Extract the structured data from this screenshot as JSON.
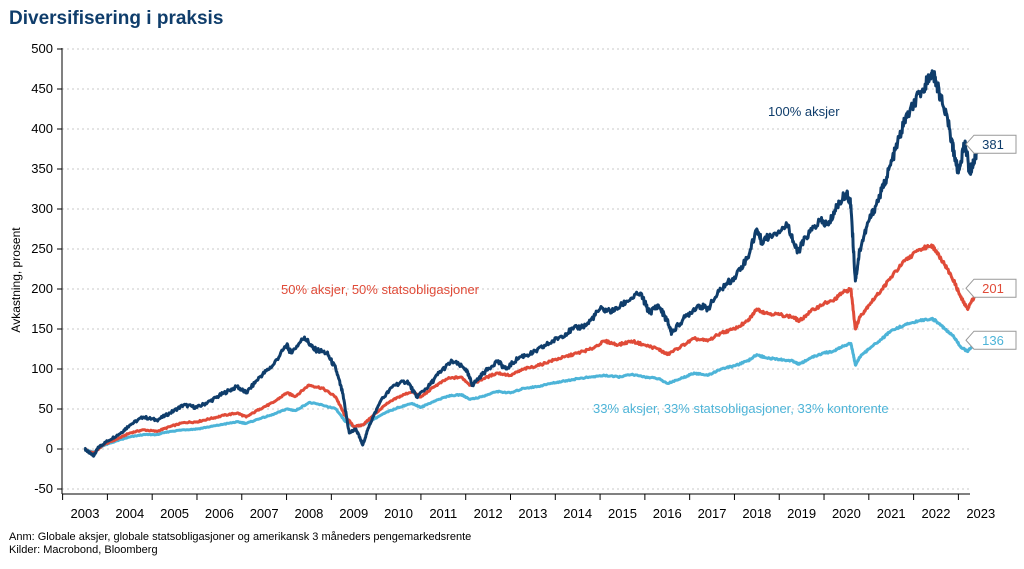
{
  "page": {
    "title": "Diversifisering i praksis",
    "notes": [
      "Anm: Globale aksjer, globale statsobligasjoner og amerikansk 3 måneders pengemarkedsrente",
      "Kilder: Macrobond, Bloomberg"
    ]
  },
  "chart_data": {
    "type": "line",
    "title": "Diversifisering i praksis",
    "ylabel": "Avkastning, prosent",
    "xlabel": "",
    "ylim": [
      -50,
      500
    ],
    "xlim": [
      2002.9,
      2023.4
    ],
    "grid": true,
    "y_ticks": [
      -50,
      0,
      50,
      100,
      150,
      200,
      250,
      300,
      350,
      400,
      450,
      500
    ],
    "x_ticks": [
      2003,
      2004,
      2005,
      2006,
      2007,
      2008,
      2009,
      2010,
      2011,
      2012,
      2013,
      2014,
      2015,
      2016,
      2017,
      2018,
      2019,
      2020,
      2021,
      2022,
      2023
    ],
    "x_tick_labels": [
      "2003",
      "2004",
      "2005",
      "2006",
      "2007",
      "2008",
      "2009",
      "2010",
      "2011",
      "2012",
      "2013",
      "2014",
      "2015",
      "2016",
      "2017",
      "2018",
      "2019",
      "2020",
      "2021",
      "2022",
      "2023"
    ],
    "series": [
      {
        "name": "100% aksjer",
        "color": "#0f3d6b",
        "end_label": "381",
        "points": [
          [
            2003.0,
            0
          ],
          [
            2003.1,
            -5
          ],
          [
            2003.2,
            -8
          ],
          [
            2003.3,
            2
          ],
          [
            2003.5,
            10
          ],
          [
            2003.8,
            20
          ],
          [
            2004.0,
            30
          ],
          [
            2004.3,
            40
          ],
          [
            2004.6,
            36
          ],
          [
            2004.9,
            45
          ],
          [
            2005.2,
            55
          ],
          [
            2005.5,
            52
          ],
          [
            2005.8,
            60
          ],
          [
            2006.1,
            70
          ],
          [
            2006.4,
            78
          ],
          [
            2006.6,
            70
          ],
          [
            2006.9,
            90
          ],
          [
            2007.2,
            105
          ],
          [
            2007.5,
            130
          ],
          [
            2007.6,
            120
          ],
          [
            2007.9,
            140
          ],
          [
            2008.1,
            125
          ],
          [
            2008.4,
            120
          ],
          [
            2008.6,
            100
          ],
          [
            2008.75,
            70
          ],
          [
            2008.9,
            20
          ],
          [
            2009.05,
            25
          ],
          [
            2009.2,
            5
          ],
          [
            2009.35,
            30
          ],
          [
            2009.6,
            60
          ],
          [
            2009.9,
            80
          ],
          [
            2010.2,
            85
          ],
          [
            2010.4,
            65
          ],
          [
            2010.7,
            80
          ],
          [
            2010.9,
            95
          ],
          [
            2011.2,
            110
          ],
          [
            2011.5,
            100
          ],
          [
            2011.65,
            80
          ],
          [
            2011.9,
            95
          ],
          [
            2012.2,
            110
          ],
          [
            2012.4,
            100
          ],
          [
            2012.7,
            115
          ],
          [
            2013.0,
            120
          ],
          [
            2013.3,
            130
          ],
          [
            2013.6,
            140
          ],
          [
            2013.9,
            150
          ],
          [
            2014.2,
            155
          ],
          [
            2014.5,
            175
          ],
          [
            2014.8,
            172
          ],
          [
            2015.1,
            185
          ],
          [
            2015.4,
            195
          ],
          [
            2015.6,
            170
          ],
          [
            2015.8,
            180
          ],
          [
            2016.0,
            160
          ],
          [
            2016.1,
            145
          ],
          [
            2016.4,
            165
          ],
          [
            2016.7,
            180
          ],
          [
            2016.9,
            175
          ],
          [
            2017.2,
            200
          ],
          [
            2017.5,
            215
          ],
          [
            2017.8,
            240
          ],
          [
            2018.0,
            275
          ],
          [
            2018.1,
            260
          ],
          [
            2018.4,
            270
          ],
          [
            2018.7,
            280
          ],
          [
            2018.9,
            245
          ],
          [
            2019.1,
            265
          ],
          [
            2019.4,
            285
          ],
          [
            2019.6,
            280
          ],
          [
            2019.8,
            305
          ],
          [
            2020.0,
            320
          ],
          [
            2020.1,
            305
          ],
          [
            2020.2,
            210
          ],
          [
            2020.3,
            250
          ],
          [
            2020.5,
            285
          ],
          [
            2020.7,
            310
          ],
          [
            2020.9,
            340
          ],
          [
            2021.1,
            375
          ],
          [
            2021.3,
            410
          ],
          [
            2021.5,
            430
          ],
          [
            2021.7,
            450
          ],
          [
            2021.9,
            470
          ],
          [
            2022.0,
            460
          ],
          [
            2022.1,
            440
          ],
          [
            2022.3,
            400
          ],
          [
            2022.4,
            370
          ],
          [
            2022.5,
            345
          ],
          [
            2022.65,
            385
          ],
          [
            2022.75,
            345
          ],
          [
            2022.85,
            360
          ],
          [
            2022.95,
            381
          ]
        ]
      },
      {
        "name": "50% aksjer, 50% statsobligasjoner",
        "color": "#e04b38",
        "end_label": "201",
        "points": [
          [
            2003.0,
            0
          ],
          [
            2003.1,
            -4
          ],
          [
            2003.2,
            -5
          ],
          [
            2003.4,
            5
          ],
          [
            2003.7,
            12
          ],
          [
            2004.0,
            20
          ],
          [
            2004.3,
            24
          ],
          [
            2004.6,
            22
          ],
          [
            2004.9,
            28
          ],
          [
            2005.2,
            33
          ],
          [
            2005.5,
            34
          ],
          [
            2005.8,
            38
          ],
          [
            2006.1,
            42
          ],
          [
            2006.4,
            45
          ],
          [
            2006.6,
            40
          ],
          [
            2006.9,
            50
          ],
          [
            2007.2,
            58
          ],
          [
            2007.5,
            70
          ],
          [
            2007.7,
            66
          ],
          [
            2008.0,
            80
          ],
          [
            2008.3,
            76
          ],
          [
            2008.6,
            65
          ],
          [
            2008.8,
            42
          ],
          [
            2009.0,
            28
          ],
          [
            2009.2,
            30
          ],
          [
            2009.4,
            40
          ],
          [
            2009.7,
            55
          ],
          [
            2010.0,
            65
          ],
          [
            2010.3,
            72
          ],
          [
            2010.5,
            65
          ],
          [
            2010.8,
            78
          ],
          [
            2011.1,
            88
          ],
          [
            2011.4,
            90
          ],
          [
            2011.6,
            80
          ],
          [
            2011.9,
            88
          ],
          [
            2012.2,
            95
          ],
          [
            2012.5,
            92
          ],
          [
            2012.8,
            100
          ],
          [
            2013.1,
            104
          ],
          [
            2013.4,
            110
          ],
          [
            2013.7,
            115
          ],
          [
            2014.0,
            120
          ],
          [
            2014.3,
            125
          ],
          [
            2014.6,
            135
          ],
          [
            2014.9,
            130
          ],
          [
            2015.2,
            135
          ],
          [
            2015.5,
            130
          ],
          [
            2015.8,
            125
          ],
          [
            2016.0,
            118
          ],
          [
            2016.3,
            128
          ],
          [
            2016.6,
            138
          ],
          [
            2016.9,
            135
          ],
          [
            2017.2,
            145
          ],
          [
            2017.5,
            150
          ],
          [
            2017.8,
            160
          ],
          [
            2018.0,
            175
          ],
          [
            2018.2,
            170
          ],
          [
            2018.5,
            168
          ],
          [
            2018.8,
            165
          ],
          [
            2018.95,
            160
          ],
          [
            2019.2,
            172
          ],
          [
            2019.5,
            182
          ],
          [
            2019.7,
            185
          ],
          [
            2019.9,
            195
          ],
          [
            2020.1,
            200
          ],
          [
            2020.2,
            150
          ],
          [
            2020.3,
            165
          ],
          [
            2020.5,
            180
          ],
          [
            2020.8,
            200
          ],
          [
            2021.0,
            215
          ],
          [
            2021.3,
            235
          ],
          [
            2021.6,
            248
          ],
          [
            2021.9,
            255
          ],
          [
            2022.0,
            248
          ],
          [
            2022.2,
            230
          ],
          [
            2022.4,
            210
          ],
          [
            2022.55,
            190
          ],
          [
            2022.7,
            175
          ],
          [
            2022.85,
            190
          ],
          [
            2022.95,
            201
          ]
        ]
      },
      {
        "name": "33% aksjer, 33% statsobligasjoner, 33% kontorente",
        "color": "#4db4d8",
        "end_label": "136",
        "points": [
          [
            2003.0,
            0
          ],
          [
            2003.1,
            -3
          ],
          [
            2003.2,
            -4
          ],
          [
            2003.4,
            4
          ],
          [
            2003.7,
            10
          ],
          [
            2004.0,
            15
          ],
          [
            2004.3,
            18
          ],
          [
            2004.6,
            18
          ],
          [
            2004.9,
            22
          ],
          [
            2005.2,
            24
          ],
          [
            2005.5,
            25
          ],
          [
            2005.8,
            28
          ],
          [
            2006.1,
            31
          ],
          [
            2006.4,
            34
          ],
          [
            2006.6,
            32
          ],
          [
            2006.9,
            38
          ],
          [
            2007.2,
            43
          ],
          [
            2007.5,
            50
          ],
          [
            2007.7,
            48
          ],
          [
            2008.0,
            58
          ],
          [
            2008.3,
            55
          ],
          [
            2008.6,
            50
          ],
          [
            2008.8,
            35
          ],
          [
            2009.0,
            28
          ],
          [
            2009.2,
            30
          ],
          [
            2009.4,
            36
          ],
          [
            2009.7,
            45
          ],
          [
            2010.0,
            52
          ],
          [
            2010.3,
            57
          ],
          [
            2010.5,
            52
          ],
          [
            2010.8,
            60
          ],
          [
            2011.1,
            66
          ],
          [
            2011.4,
            68
          ],
          [
            2011.6,
            62
          ],
          [
            2011.9,
            66
          ],
          [
            2012.2,
            72
          ],
          [
            2012.5,
            70
          ],
          [
            2012.8,
            76
          ],
          [
            2013.1,
            78
          ],
          [
            2013.4,
            82
          ],
          [
            2013.7,
            85
          ],
          [
            2014.0,
            88
          ],
          [
            2014.3,
            90
          ],
          [
            2014.6,
            92
          ],
          [
            2014.9,
            90
          ],
          [
            2015.2,
            93
          ],
          [
            2015.5,
            90
          ],
          [
            2015.8,
            88
          ],
          [
            2016.0,
            82
          ],
          [
            2016.3,
            88
          ],
          [
            2016.6,
            95
          ],
          [
            2016.9,
            92
          ],
          [
            2017.2,
            100
          ],
          [
            2017.5,
            104
          ],
          [
            2017.8,
            110
          ],
          [
            2018.0,
            118
          ],
          [
            2018.2,
            114
          ],
          [
            2018.5,
            112
          ],
          [
            2018.8,
            110
          ],
          [
            2018.95,
            106
          ],
          [
            2019.2,
            114
          ],
          [
            2019.5,
            120
          ],
          [
            2019.7,
            122
          ],
          [
            2019.9,
            128
          ],
          [
            2020.1,
            132
          ],
          [
            2020.2,
            105
          ],
          [
            2020.3,
            115
          ],
          [
            2020.5,
            125
          ],
          [
            2020.8,
            138
          ],
          [
            2021.0,
            148
          ],
          [
            2021.3,
            155
          ],
          [
            2021.6,
            160
          ],
          [
            2021.9,
            163
          ],
          [
            2022.0,
            160
          ],
          [
            2022.2,
            150
          ],
          [
            2022.4,
            140
          ],
          [
            2022.55,
            128
          ],
          [
            2022.7,
            122
          ],
          [
            2022.85,
            130
          ],
          [
            2022.95,
            136
          ]
        ]
      }
    ],
    "annotations": [
      {
        "text": "100% aksjer",
        "series": 0
      },
      {
        "text": "50% aksjer, 50% statsobligasjoner",
        "series": 1
      },
      {
        "text": "33% aksjer, 33% statsobligasjoner, 33% kontorente",
        "series": 2
      }
    ]
  }
}
